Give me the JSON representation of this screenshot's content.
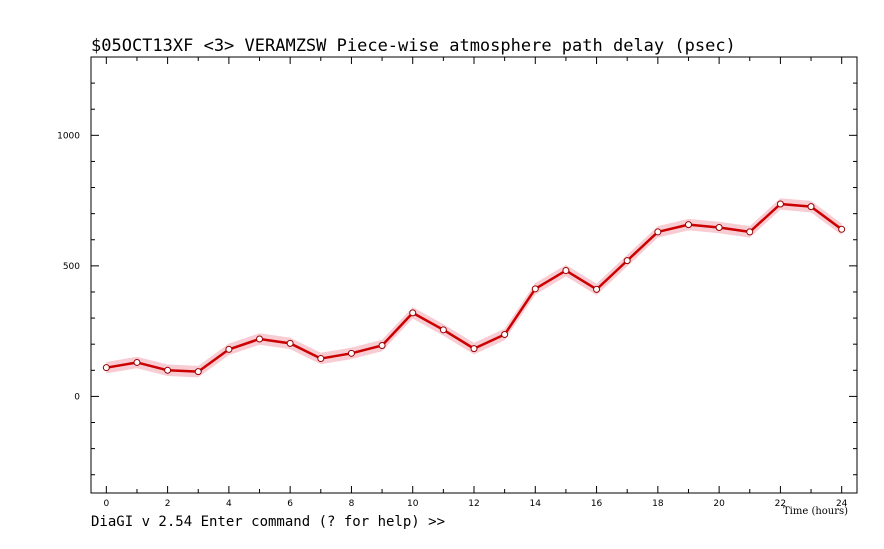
{
  "chart_data": {
    "type": "line",
    "title": "$05OCT13XF <3>  VERAMZSW  Piece-wise atmosphere path delay (psec)",
    "xlabel": "Time (hours)",
    "ylabel": "",
    "xlim": [
      -0.5,
      24.5
    ],
    "ylim": [
      -370,
      1300
    ],
    "x_ticks": [
      0,
      2,
      4,
      6,
      8,
      10,
      12,
      14,
      16,
      18,
      20,
      22,
      24
    ],
    "y_ticks": [
      0,
      500,
      1000
    ],
    "grid": false,
    "series": [
      {
        "x": [
          0,
          1,
          2,
          3,
          4,
          5,
          6,
          7,
          8,
          9,
          10,
          11,
          12,
          13,
          14,
          15,
          16,
          17,
          18,
          19,
          20,
          21,
          22,
          23,
          24
        ],
        "values": [
          110,
          130,
          100,
          95,
          180,
          220,
          203,
          145,
          165,
          195,
          320,
          255,
          183,
          237,
          412,
          482,
          410,
          520,
          630,
          658,
          647,
          630,
          737,
          727,
          640
        ],
        "error_band": 22
      }
    ],
    "colors": {
      "line": "#cc0000",
      "band": "#f7c3cb",
      "marker_fill": "#ffffff",
      "marker_edge": "#990000",
      "axes": "#000000"
    }
  },
  "status": {
    "prompt": "DiaGI v 2.54  Enter command (? for help) >>"
  }
}
